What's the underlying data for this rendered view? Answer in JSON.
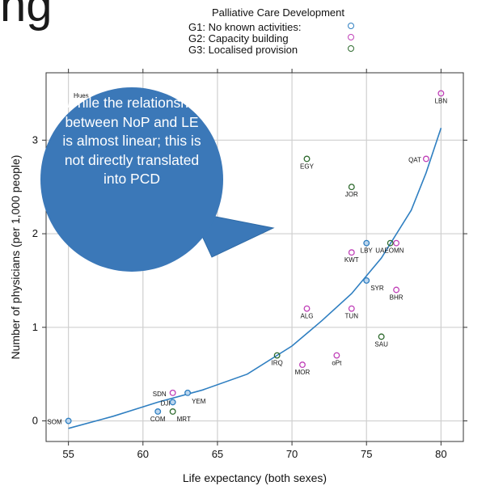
{
  "header_fragment": "ng",
  "legend": {
    "title": "Palliative Care Development",
    "items": [
      {
        "label": "G1: No known activities:",
        "color": "#2f7fc1"
      },
      {
        "label": "G2: Capacity building",
        "color": "#c040b8"
      },
      {
        "label": "G3: Localised provision",
        "color": "#2f6b2f"
      }
    ]
  },
  "callout": {
    "text": "While the relationship between NoP and LE is almost linear; this is not directly translated into PCD",
    "hidden_label": "Hues"
  },
  "chart_data": {
    "type": "scatter",
    "xlabel": "Life expectancy (both sexes)",
    "ylabel": "Number of physicians (per 1,000 people)",
    "xlim": [
      53.5,
      81.5
    ],
    "ylim": [
      -0.22,
      3.72
    ],
    "xticks": [
      55,
      60,
      65,
      70,
      75,
      80
    ],
    "yticks": [
      0,
      1,
      2,
      3
    ],
    "grid": true,
    "series": [
      {
        "name": "G1: No known activities:",
        "points": [
          {
            "x": 55,
            "y": 0,
            "label": "SOM"
          },
          {
            "x": 61,
            "y": 0.1,
            "label": "COM"
          },
          {
            "x": 62,
            "y": 0.2,
            "label": "DJI"
          },
          {
            "x": 63,
            "y": 0.3,
            "label": "YEM"
          },
          {
            "x": 75,
            "y": 1.9,
            "label": "LBY"
          },
          {
            "x": 75,
            "y": 1.5,
            "label": "SYR"
          }
        ]
      },
      {
        "name": "G2: Capacity building",
        "points": [
          {
            "x": 62,
            "y": 0.3,
            "label": "SDN"
          },
          {
            "x": 70.7,
            "y": 0.6,
            "label": "MOR"
          },
          {
            "x": 73,
            "y": 0.7,
            "label": "oPt"
          },
          {
            "x": 71,
            "y": 1.2,
            "label": "ALG"
          },
          {
            "x": 74,
            "y": 1.2,
            "label": "TUN"
          },
          {
            "x": 74,
            "y": 1.8,
            "label": "KWT"
          },
          {
            "x": 77,
            "y": 1.9,
            "label": "OMN"
          },
          {
            "x": 77,
            "y": 1.4,
            "label": "BHR"
          },
          {
            "x": 79,
            "y": 2.8,
            "label": "QAT"
          },
          {
            "x": 80,
            "y": 3.5,
            "label": "LBN"
          }
        ]
      },
      {
        "name": "G3: Localised provision",
        "points": [
          {
            "x": 62,
            "y": 0.1,
            "label": "MRT"
          },
          {
            "x": 69,
            "y": 0.7,
            "label": "IRQ"
          },
          {
            "x": 76,
            "y": 0.9,
            "label": "SAU"
          },
          {
            "x": 71,
            "y": 2.8,
            "label": "EGY"
          },
          {
            "x": 74,
            "y": 2.5,
            "label": "JOR"
          },
          {
            "x": 76.6,
            "y": 1.9,
            "label": "UAE"
          }
        ]
      }
    ],
    "trend_line": {
      "color": "#2f7fc1",
      "points": [
        [
          55,
          -0.08
        ],
        [
          58,
          0.05
        ],
        [
          61,
          0.2
        ],
        [
          64,
          0.33
        ],
        [
          67,
          0.5
        ],
        [
          70,
          0.8
        ],
        [
          72,
          1.07
        ],
        [
          74,
          1.36
        ],
        [
          76,
          1.74
        ],
        [
          78,
          2.25
        ],
        [
          79,
          2.65
        ],
        [
          80,
          3.13
        ]
      ]
    }
  }
}
